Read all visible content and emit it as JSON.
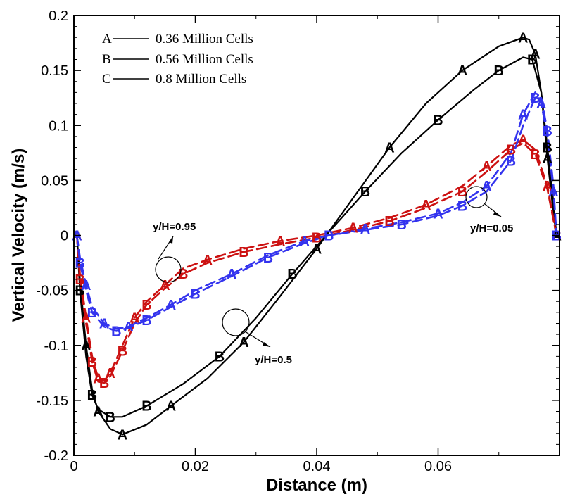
{
  "chart_data": {
    "type": "line",
    "title": "",
    "xlabel": "Distance (m)",
    "ylabel": "Vertical Velocity (m/s)",
    "xlim": [
      0,
      0.08
    ],
    "ylim": [
      -0.2,
      0.2
    ],
    "x_ticks": [
      0,
      0.02,
      0.04,
      0.06
    ],
    "x_tick_labels": [
      "0",
      "0.02",
      "0.04",
      "0.06"
    ],
    "y_ticks": [
      -0.2,
      -0.15,
      -0.1,
      -0.05,
      0,
      0.05,
      0.1,
      0.15,
      0.2
    ],
    "y_tick_labels": [
      "-0.2",
      "-0.15",
      "-0.1",
      "-0.05",
      "0",
      "0.05",
      "0.1",
      "0.15",
      "0.2"
    ],
    "legend": {
      "placement": "top-left",
      "entries": [
        {
          "key": "A",
          "label": "0.36 Million Cells"
        },
        {
          "key": "B",
          "label": "0.56 Million Cells"
        },
        {
          "key": "C",
          "label": "0.8 Million Cells"
        }
      ]
    },
    "annotations": [
      {
        "text": "y/H=0.95",
        "target": "red profiles"
      },
      {
        "text": "y/H=0.5",
        "target": "black profiles"
      },
      {
        "text": "y/H=0.05",
        "target": "blue profiles"
      }
    ],
    "colors": {
      "black": "#000000",
      "red": "#cc1111",
      "blue": "#3333ee"
    },
    "series": [
      {
        "name": "y/H=0.5 A",
        "color": "black",
        "dashed": false,
        "marker": "A",
        "x": [
          0.0005,
          0.001,
          0.002,
          0.003,
          0.004,
          0.006,
          0.008,
          0.012,
          0.016,
          0.022,
          0.028,
          0.034,
          0.04,
          0.046,
          0.052,
          0.058,
          0.064,
          0.07,
          0.074,
          0.075,
          0.076,
          0.077,
          0.078,
          0.079,
          0.0795
        ],
        "y": [
          0,
          -0.04,
          -0.1,
          -0.14,
          -0.16,
          -0.176,
          -0.181,
          -0.172,
          -0.155,
          -0.13,
          -0.097,
          -0.055,
          -0.012,
          0.034,
          0.08,
          0.12,
          0.15,
          0.172,
          0.18,
          0.178,
          0.165,
          0.13,
          0.07,
          0.02,
          0
        ]
      },
      {
        "name": "y/H=0.5 B/C",
        "color": "black",
        "dashed": false,
        "marker": "B",
        "x": [
          0.0005,
          0.001,
          0.002,
          0.003,
          0.004,
          0.006,
          0.008,
          0.012,
          0.018,
          0.024,
          0.03,
          0.036,
          0.042,
          0.048,
          0.054,
          0.06,
          0.066,
          0.07,
          0.074,
          0.0755,
          0.077,
          0.078,
          0.079,
          0.0795
        ],
        "y": [
          0,
          -0.05,
          -0.11,
          -0.145,
          -0.158,
          -0.165,
          -0.165,
          -0.155,
          -0.135,
          -0.11,
          -0.075,
          -0.035,
          0.003,
          0.04,
          0.075,
          0.105,
          0.133,
          0.15,
          0.162,
          0.16,
          0.13,
          0.08,
          0.03,
          0
        ]
      },
      {
        "name": "y/H=0.95 A",
        "color": "red",
        "dashed": true,
        "marker": "A",
        "x": [
          0.0005,
          0.001,
          0.002,
          0.003,
          0.004,
          0.005,
          0.006,
          0.008,
          0.01,
          0.012,
          0.015,
          0.018,
          0.022,
          0.028,
          0.034,
          0.04,
          0.046,
          0.052,
          0.058,
          0.064,
          0.068,
          0.072,
          0.074,
          0.076,
          0.078,
          0.0795
        ],
        "y": [
          0,
          -0.035,
          -0.075,
          -0.11,
          -0.13,
          -0.132,
          -0.125,
          -0.1,
          -0.075,
          -0.06,
          -0.045,
          -0.03,
          -0.022,
          -0.012,
          -0.005,
          0,
          0.007,
          0.016,
          0.028,
          0.045,
          0.063,
          0.082,
          0.087,
          0.078,
          0.045,
          0
        ]
      },
      {
        "name": "y/H=0.95 B/C",
        "color": "red",
        "dashed": true,
        "marker": "B",
        "x": [
          0.0005,
          0.001,
          0.002,
          0.003,
          0.004,
          0.005,
          0.006,
          0.008,
          0.01,
          0.012,
          0.015,
          0.018,
          0.022,
          0.028,
          0.034,
          0.04,
          0.046,
          0.052,
          0.058,
          0.064,
          0.068,
          0.072,
          0.074,
          0.076,
          0.078,
          0.0795
        ],
        "y": [
          0,
          -0.04,
          -0.08,
          -0.115,
          -0.133,
          -0.134,
          -0.128,
          -0.105,
          -0.08,
          -0.063,
          -0.048,
          -0.035,
          -0.025,
          -0.015,
          -0.008,
          -0.002,
          0.005,
          0.013,
          0.025,
          0.04,
          0.058,
          0.078,
          0.084,
          0.074,
          0.042,
          0
        ]
      },
      {
        "name": "y/H=0.05 A",
        "color": "blue",
        "dashed": true,
        "marker": "A",
        "x": [
          0.0005,
          0.001,
          0.002,
          0.003,
          0.005,
          0.007,
          0.009,
          0.012,
          0.016,
          0.02,
          0.026,
          0.032,
          0.038,
          0.042,
          0.048,
          0.054,
          0.06,
          0.064,
          0.068,
          0.072,
          0.074,
          0.076,
          0.077,
          0.078,
          0.079,
          0.0795
        ],
        "y": [
          0,
          -0.02,
          -0.045,
          -0.065,
          -0.08,
          -0.085,
          -0.083,
          -0.075,
          -0.063,
          -0.05,
          -0.035,
          -0.018,
          -0.005,
          0,
          0.006,
          0.012,
          0.02,
          0.03,
          0.045,
          0.075,
          0.11,
          0.13,
          0.12,
          0.09,
          0.04,
          0
        ]
      },
      {
        "name": "y/H=0.05 B/C",
        "color": "blue",
        "dashed": true,
        "marker": "B",
        "x": [
          0.0005,
          0.001,
          0.002,
          0.003,
          0.005,
          0.007,
          0.009,
          0.012,
          0.016,
          0.02,
          0.026,
          0.032,
          0.038,
          0.042,
          0.048,
          0.054,
          0.06,
          0.064,
          0.068,
          0.072,
          0.074,
          0.076,
          0.077,
          0.078,
          0.079,
          0.0795
        ],
        "y": [
          0,
          -0.025,
          -0.05,
          -0.07,
          -0.083,
          -0.087,
          -0.084,
          -0.077,
          -0.065,
          -0.053,
          -0.037,
          -0.02,
          -0.007,
          0,
          0.005,
          0.01,
          0.018,
          0.027,
          0.04,
          0.068,
          0.1,
          0.125,
          0.125,
          0.095,
          0.045,
          0
        ]
      }
    ]
  }
}
